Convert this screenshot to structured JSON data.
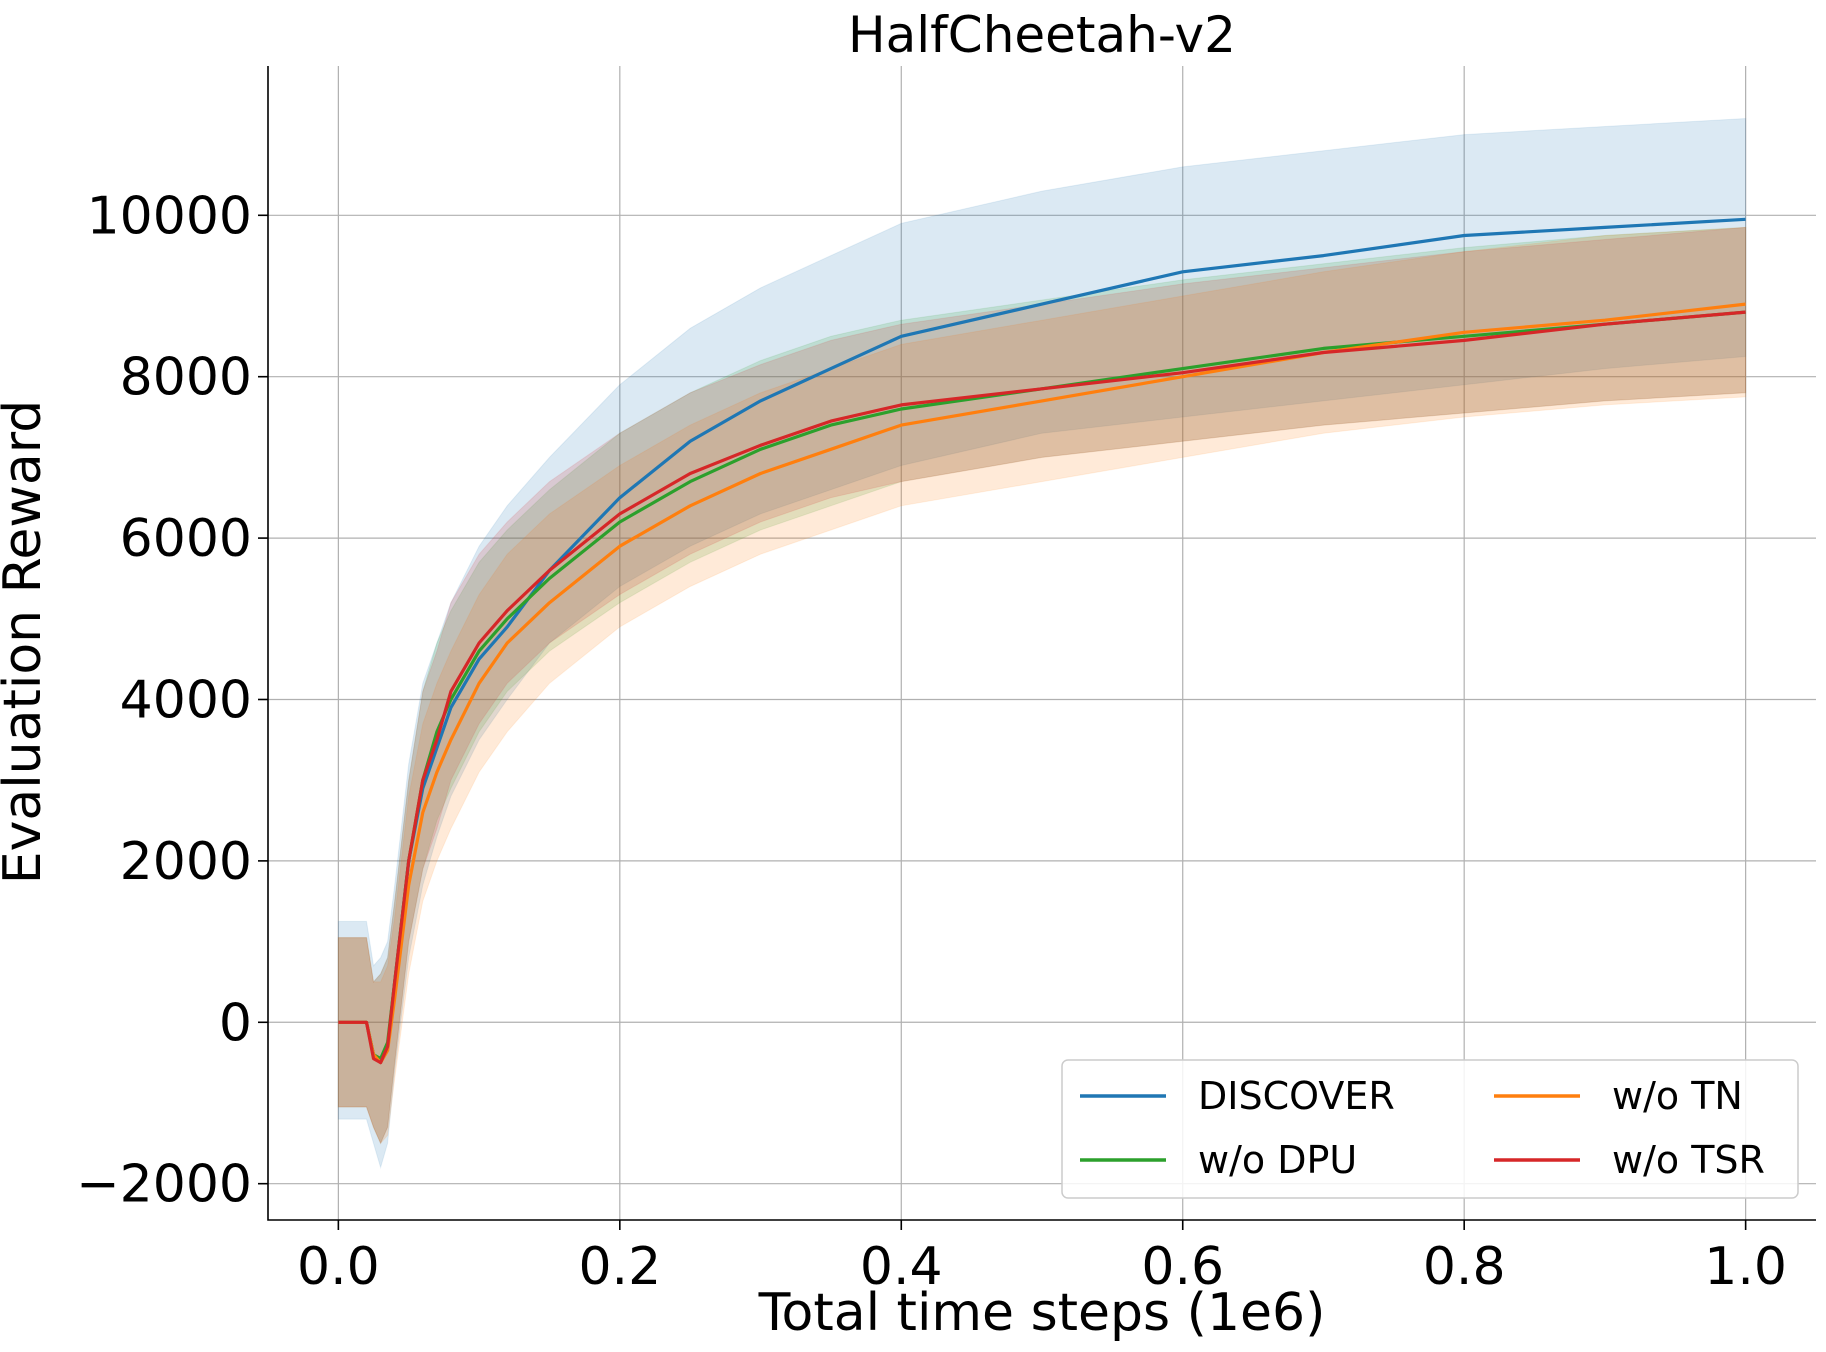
{
  "chart_data": {
    "type": "line",
    "title": "HalfCheetah-v2",
    "xlabel": "Total time steps (1e6)",
    "ylabel": "Evaluation Reward",
    "xlim": [
      -0.05,
      1.05
    ],
    "ylim": [
      -2450,
      11850
    ],
    "xticks": [
      0.0,
      0.2,
      0.4,
      0.6,
      0.8,
      1.0
    ],
    "xtick_labels": [
      "0.0",
      "0.2",
      "0.4",
      "0.6",
      "0.8",
      "1.0"
    ],
    "yticks": [
      -2000,
      0,
      2000,
      4000,
      6000,
      8000,
      10000
    ],
    "ytick_labels": [
      "−2000",
      "0",
      "2000",
      "4000",
      "6000",
      "8000",
      "10000"
    ],
    "grid": true,
    "legend": {
      "placement": "lower-right",
      "columns": 2
    },
    "x": [
      0.0,
      0.02,
      0.025,
      0.03,
      0.035,
      0.04,
      0.05,
      0.06,
      0.07,
      0.08,
      0.1,
      0.12,
      0.15,
      0.2,
      0.25,
      0.3,
      0.35,
      0.4,
      0.5,
      0.6,
      0.7,
      0.8,
      0.9,
      1.0
    ],
    "series": [
      {
        "name": "DISCOVER",
        "color": "#1f77b4",
        "values": [
          0,
          0,
          -400,
          -500,
          -300,
          500,
          2000,
          2900,
          3400,
          3900,
          4500,
          4900,
          5600,
          6500,
          7200,
          7700,
          8100,
          8500,
          8900,
          9300,
          9500,
          9750,
          9850,
          9950
        ],
        "band_lower": [
          -1200,
          -1200,
          -1500,
          -1800,
          -1500,
          -600,
          800,
          1700,
          2300,
          2800,
          3500,
          4000,
          4700,
          5400,
          5900,
          6300,
          6600,
          6900,
          7300,
          7500,
          7700,
          7900,
          8100,
          8250
        ],
        "band_upper": [
          1250,
          1250,
          700,
          800,
          1000,
          1700,
          3200,
          4200,
          4700,
          5200,
          5900,
          6400,
          7000,
          7900,
          8600,
          9100,
          9500,
          9900,
          10300,
          10600,
          10800,
          11000,
          11100,
          11200
        ]
      },
      {
        "name": "w/o DPU",
        "color": "#2ca02c",
        "values": [
          0,
          0,
          -400,
          -450,
          -250,
          500,
          2000,
          3000,
          3600,
          4000,
          4600,
          5000,
          5500,
          6200,
          6700,
          7100,
          7400,
          7600,
          7850,
          8100,
          8350,
          8500,
          8650,
          8800
        ],
        "band_lower": [
          -1050,
          -1050,
          -1300,
          -1500,
          -1300,
          -500,
          1000,
          1900,
          2500,
          2900,
          3600,
          4100,
          4600,
          5200,
          5700,
          6100,
          6400,
          6700,
          7000,
          7200,
          7400,
          7550,
          7700,
          7800
        ],
        "band_upper": [
          1050,
          1050,
          500,
          600,
          800,
          1500,
          3000,
          4100,
          4700,
          5100,
          5700,
          6100,
          6600,
          7300,
          7800,
          8200,
          8500,
          8700,
          8950,
          9200,
          9400,
          9600,
          9750,
          9850
        ]
      },
      {
        "name": "w/o TN",
        "color": "#ff7f0e",
        "values": [
          0,
          0,
          -400,
          -500,
          -350,
          300,
          1700,
          2600,
          3100,
          3500,
          4200,
          4700,
          5200,
          5900,
          6400,
          6800,
          7100,
          7400,
          7700,
          8000,
          8300,
          8550,
          8700,
          8900
        ],
        "band_lower": [
          -1050,
          -1050,
          -1300,
          -1500,
          -1400,
          -700,
          600,
          1500,
          2000,
          2400,
          3100,
          3600,
          4200,
          4900,
          5400,
          5800,
          6100,
          6400,
          6700,
          7000,
          7300,
          7500,
          7650,
          7750
        ],
        "band_upper": [
          1050,
          1050,
          500,
          500,
          700,
          1300,
          2800,
          3700,
          4200,
          4600,
          5300,
          5800,
          6300,
          6900,
          7400,
          7800,
          8100,
          8400,
          8700,
          9000,
          9300,
          9550,
          9750,
          9850
        ]
      },
      {
        "name": "w/o TSR",
        "color": "#d62728",
        "values": [
          0,
          0,
          -450,
          -500,
          -300,
          500,
          2000,
          3000,
          3500,
          4100,
          4700,
          5100,
          5600,
          6300,
          6800,
          7150,
          7450,
          7650,
          7850,
          8050,
          8300,
          8450,
          8650,
          8800
        ],
        "band_lower": [
          -1050,
          -1050,
          -1300,
          -1500,
          -1300,
          -500,
          1000,
          1900,
          2400,
          3000,
          3700,
          4200,
          4700,
          5300,
          5800,
          6200,
          6500,
          6700,
          7000,
          7200,
          7400,
          7550,
          7700,
          7800
        ],
        "band_upper": [
          1050,
          1050,
          500,
          600,
          800,
          1500,
          3000,
          4100,
          4600,
          5200,
          5800,
          6200,
          6700,
          7300,
          7800,
          8150,
          8450,
          8650,
          8900,
          9150,
          9350,
          9550,
          9700,
          9850
        ]
      }
    ]
  }
}
